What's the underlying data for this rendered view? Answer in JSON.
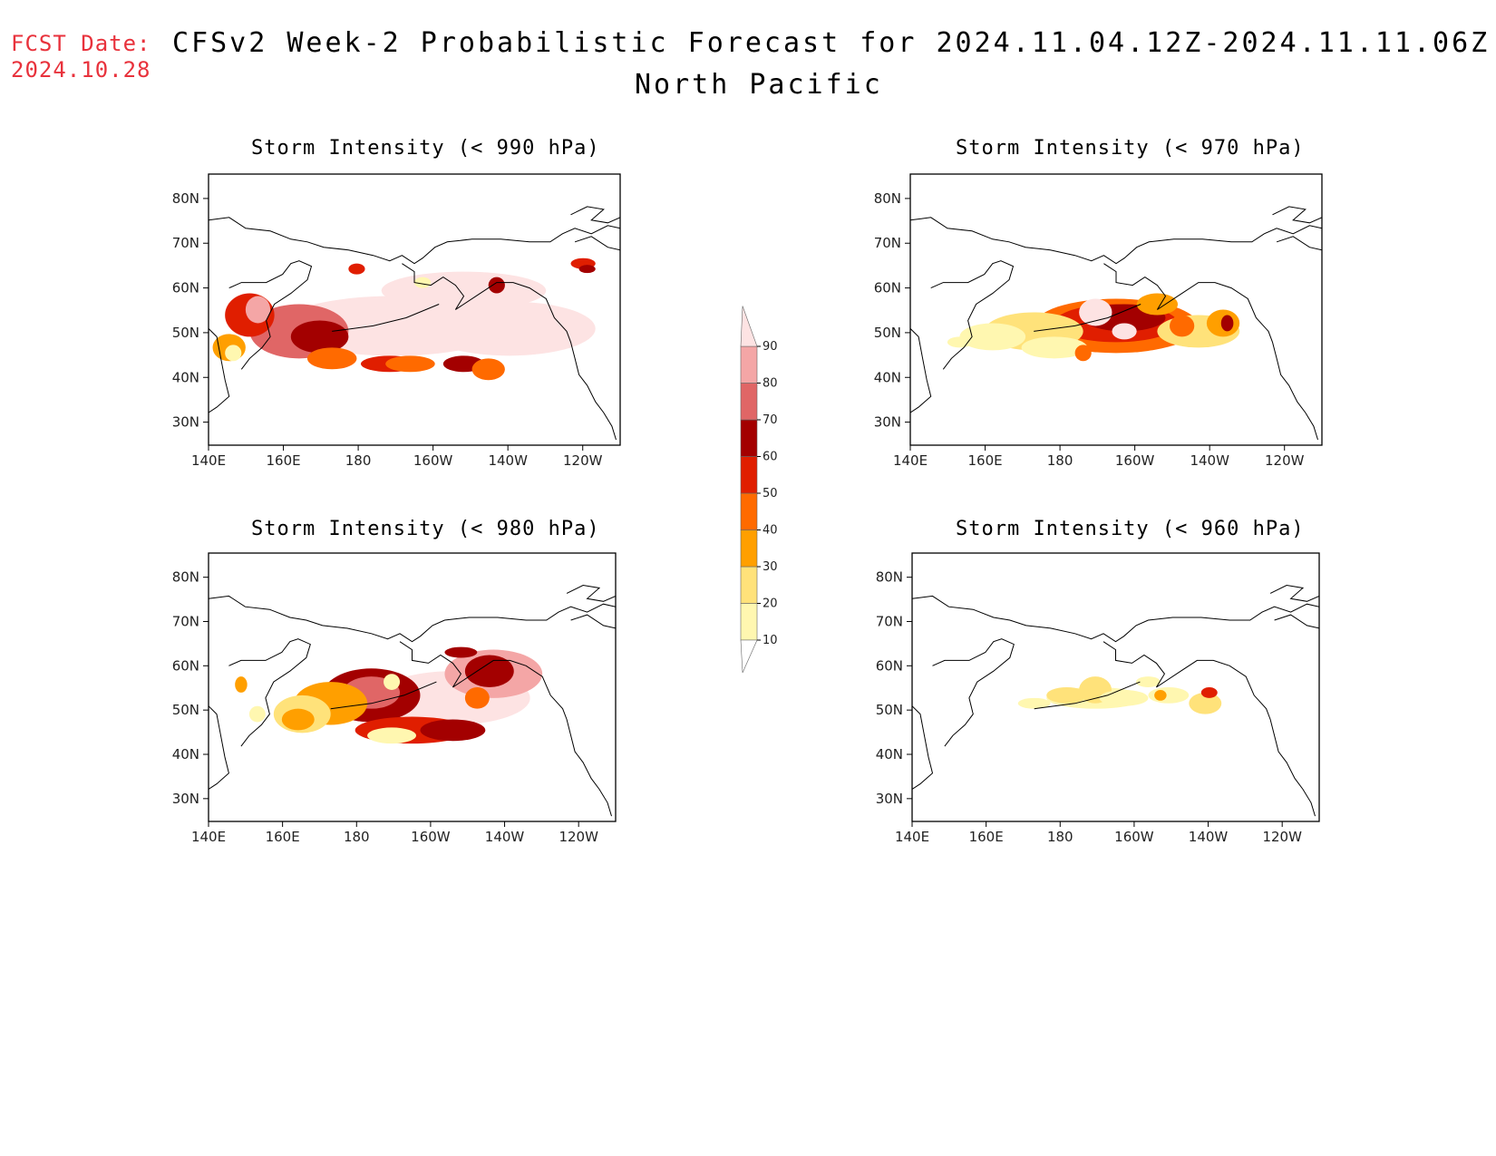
{
  "header": {
    "fcst_label": "FCST Date:",
    "fcst_date": "2024.10.28",
    "title": "CFSv2 Week-2 Probabilistic Forecast for 2024.11.04.12Z-2024.11.11.06Z",
    "subtitle": "North Pacific"
  },
  "panels": [
    {
      "title": "Storm Intensity (< 990 hPa)",
      "level": "990"
    },
    {
      "title": "Storm Intensity (< 970 hPa)",
      "level": "970"
    },
    {
      "title": "Storm Intensity (< 980 hPa)",
      "level": "980"
    },
    {
      "title": "Storm Intensity (< 960 hPa)",
      "level": "960"
    }
  ],
  "axes": {
    "lat_ticks": [
      "80N",
      "70N",
      "60N",
      "50N",
      "40N",
      "30N"
    ],
    "lon_ticks": [
      "140E",
      "160E",
      "180",
      "160W",
      "140W",
      "120W"
    ]
  },
  "colorbar": {
    "labels": [
      "10",
      "20",
      "30",
      "40",
      "50",
      "60",
      "70",
      "80",
      "90"
    ],
    "colors": [
      "#fff7b0",
      "#ffe27a",
      "#ff9f00",
      "#ff6a00",
      "#e01e00",
      "#a30000",
      "#e06666",
      "#f4a6a6",
      "#fde3e3"
    ]
  },
  "colors": {
    "fcst_text": "#e8323c",
    "coastline": "#000000"
  }
}
